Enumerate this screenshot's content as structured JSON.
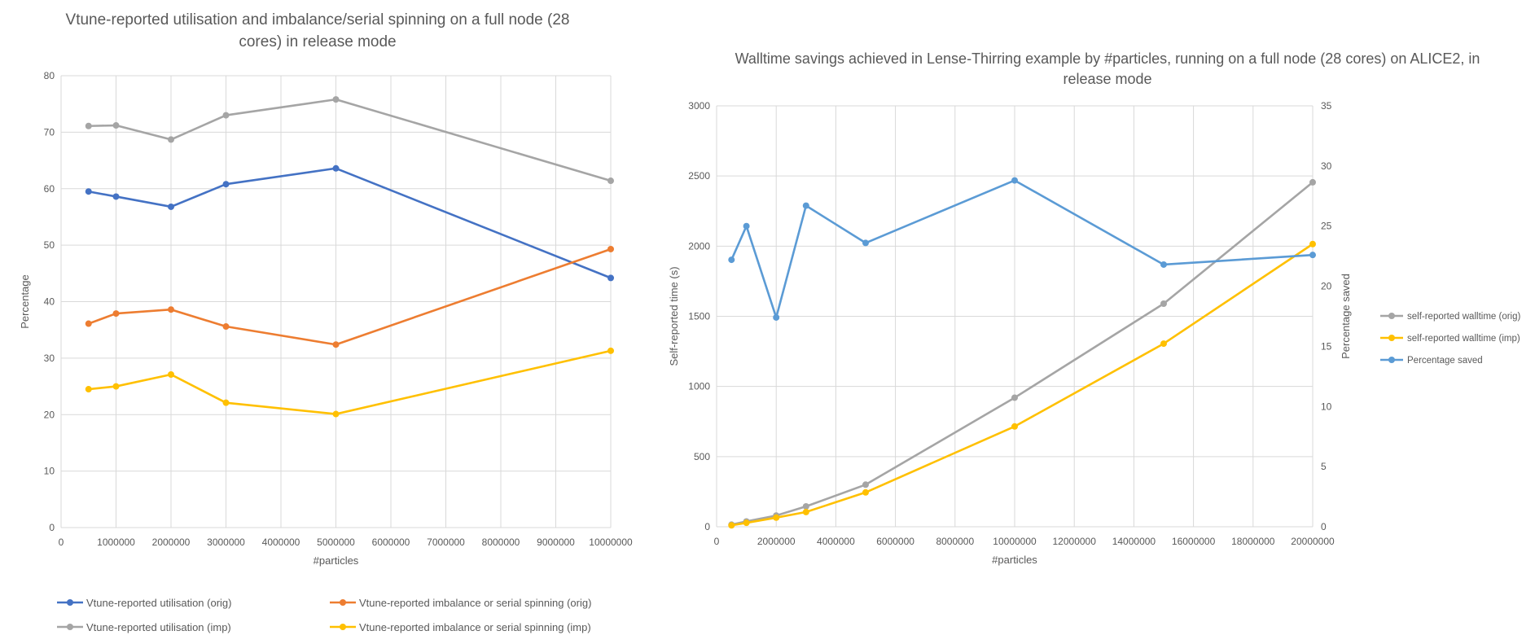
{
  "chart_data": [
    {
      "type": "line",
      "title": "Vtune-reported utilisation and imbalance/serial spinning on a full node (28 cores) in release mode",
      "xlabel": "#particles",
      "ylabel": "Percentage",
      "xlim": [
        0,
        10000000
      ],
      "ylim": [
        0,
        80
      ],
      "x_ticks": [
        0,
        1000000,
        2000000,
        3000000,
        4000000,
        5000000,
        6000000,
        7000000,
        8000000,
        9000000,
        10000000
      ],
      "y_ticks": [
        0,
        10,
        20,
        30,
        40,
        50,
        60,
        70,
        80
      ],
      "grid": true,
      "legend_position": "bottom",
      "x": [
        500000,
        1000000,
        2000000,
        3000000,
        5000000,
        10000000
      ],
      "series": [
        {
          "name": "Vtune-reported utilisation (orig)",
          "color": "#4472C4",
          "values": [
            59.5,
            58.6,
            56.8,
            60.8,
            63.6,
            44.2
          ]
        },
        {
          "name": "Vtune-reported imbalance or serial spinning (orig)",
          "color": "#ED7D31",
          "values": [
            36.1,
            37.9,
            38.6,
            35.6,
            32.4,
            49.3
          ]
        },
        {
          "name": "Vtune-reported utilisation (imp)",
          "color": "#A5A5A5",
          "values": [
            71.1,
            71.2,
            68.7,
            73.0,
            75.8,
            61.4
          ]
        },
        {
          "name": "Vtune-reported imbalance or serial spinning (imp)",
          "color": "#FFC000",
          "values": [
            24.5,
            25.0,
            27.1,
            22.1,
            20.1,
            31.3
          ]
        }
      ]
    },
    {
      "type": "line",
      "title": "Walltime savings achieved in Lense-Thirring example by #particles, running on a full node (28 cores) on ALICE2, in release mode",
      "xlabel": "#particles",
      "ylabel": "Self-reported time (s)",
      "ylabel_right": "Percentage saved",
      "xlim": [
        0,
        20000000
      ],
      "ylim": [
        0,
        3000
      ],
      "ylim_right": [
        0,
        35
      ],
      "x_ticks": [
        0,
        2000000,
        4000000,
        6000000,
        8000000,
        10000000,
        12000000,
        14000000,
        16000000,
        18000000,
        20000000
      ],
      "y_ticks": [
        0,
        500,
        1000,
        1500,
        2000,
        2500,
        3000
      ],
      "y_ticks_right": [
        0,
        5,
        10,
        15,
        20,
        25,
        30,
        35
      ],
      "grid": true,
      "legend_position": "right",
      "x": [
        500000,
        1000000,
        2000000,
        3000000,
        5000000,
        10000000,
        15000000,
        20000000
      ],
      "series": [
        {
          "name": "self-reported walltime (orig)",
          "color": "#A5A5A5",
          "axis": "left",
          "values": [
            15,
            38,
            80,
            145,
            300,
            920,
            1590,
            2455
          ]
        },
        {
          "name": "self-reported walltime (imp)",
          "color": "#FFC000",
          "axis": "left",
          "values": [
            10,
            28,
            65,
            105,
            245,
            715,
            1305,
            2015
          ]
        },
        {
          "name": "Percentage saved",
          "color": "#5B9BD5",
          "axis": "right",
          "values": [
            22.2,
            25.0,
            17.4,
            26.7,
            23.6,
            28.8,
            21.8,
            22.6
          ]
        }
      ]
    }
  ]
}
